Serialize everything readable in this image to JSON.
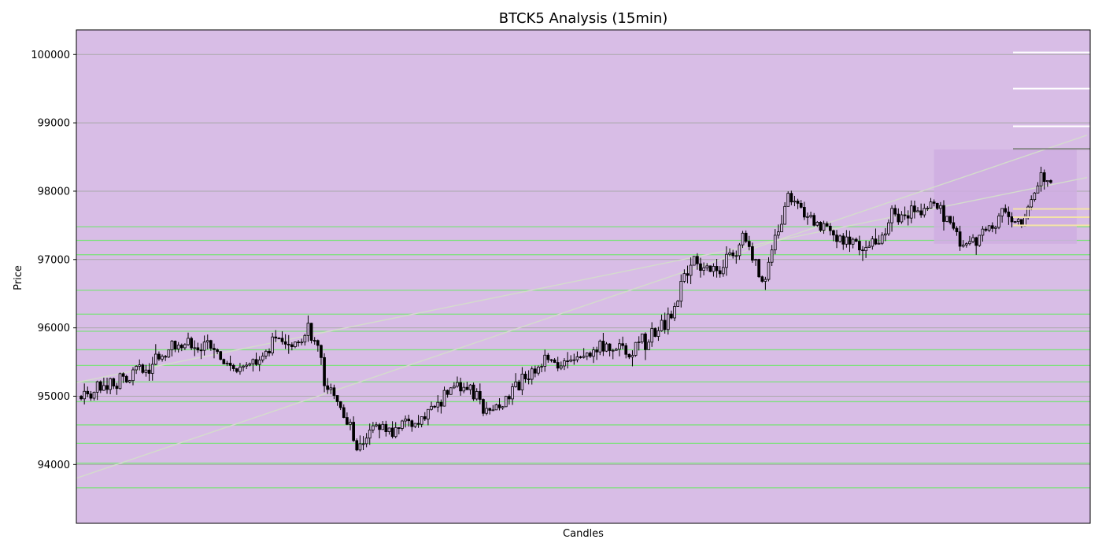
{
  "chart_data": {
    "type": "candlestick",
    "title": "BTCK5 Analysis (15min)",
    "xlabel": "Candles",
    "ylabel": "Price",
    "ylim": [
      93140,
      100360
    ],
    "y_ticks": [
      94000,
      95000,
      96000,
      97000,
      98000,
      99000,
      100000
    ],
    "x_ticks": [],
    "grid": "horizontal",
    "colors": {
      "background": "#d8bde6",
      "candle": "#000000",
      "grid": "#a9a9a9",
      "support_resistance": "#7fe07f",
      "trendline": "#d4dccc",
      "target_levels": "#ffffff",
      "level_marker": "#8a8a8a",
      "entry_levels": "#f4e3a8",
      "highlight_zone": "#cfaee0"
    },
    "candle_count": 300,
    "price_path_anchors": [
      [
        0,
        95000
      ],
      [
        12,
        95250
      ],
      [
        22,
        95450
      ],
      [
        30,
        95780
      ],
      [
        40,
        95700
      ],
      [
        48,
        95400
      ],
      [
        55,
        95600
      ],
      [
        60,
        95850
      ],
      [
        65,
        95700
      ],
      [
        70,
        95950
      ],
      [
        73,
        95700
      ],
      [
        75,
        95200
      ],
      [
        80,
        94800
      ],
      [
        85,
        94300
      ],
      [
        90,
        94500
      ],
      [
        98,
        94550
      ],
      [
        105,
        94650
      ],
      [
        112,
        94950
      ],
      [
        118,
        95200
      ],
      [
        124,
        94800
      ],
      [
        130,
        94900
      ],
      [
        138,
        95300
      ],
      [
        145,
        95550
      ],
      [
        152,
        95500
      ],
      [
        160,
        95800
      ],
      [
        168,
        95650
      ],
      [
        175,
        95850
      ],
      [
        182,
        96200
      ],
      [
        188,
        97000
      ],
      [
        196,
        96800
      ],
      [
        204,
        97300
      ],
      [
        210,
        96700
      ],
      [
        218,
        97900
      ],
      [
        228,
        97500
      ],
      [
        236,
        97250
      ],
      [
        245,
        97150
      ],
      [
        250,
        97650
      ],
      [
        256,
        97700
      ],
      [
        262,
        97850
      ],
      [
        266,
        97650
      ],
      [
        272,
        97200
      ],
      [
        278,
        97400
      ],
      [
        284,
        97650
      ],
      [
        290,
        97500
      ],
      [
        296,
        98200
      ],
      [
        302,
        98100
      ],
      [
        308,
        97950
      ],
      [
        314,
        97600
      ],
      [
        318,
        97650
      ]
    ],
    "horizontal_levels": {
      "support_resistance": [
        97480,
        97280,
        97070,
        96550,
        96200,
        95950,
        95680,
        95450,
        95210,
        94920,
        94580,
        94310,
        94020,
        93660
      ],
      "target_levels": [
        100030,
        99500,
        98950
      ],
      "level_marker": [
        98620
      ],
      "entry_levels": [
        97740,
        97620,
        97500
      ]
    },
    "trendlines": [
      {
        "from": [
          0,
          93800
        ],
        "to": [
          319,
          98820
        ]
      },
      {
        "from": [
          0,
          95200
        ],
        "to": [
          319,
          98200
        ]
      }
    ],
    "highlight_zone": {
      "x": [
        263,
        307
      ],
      "y": [
        97230,
        98610
      ]
    }
  }
}
